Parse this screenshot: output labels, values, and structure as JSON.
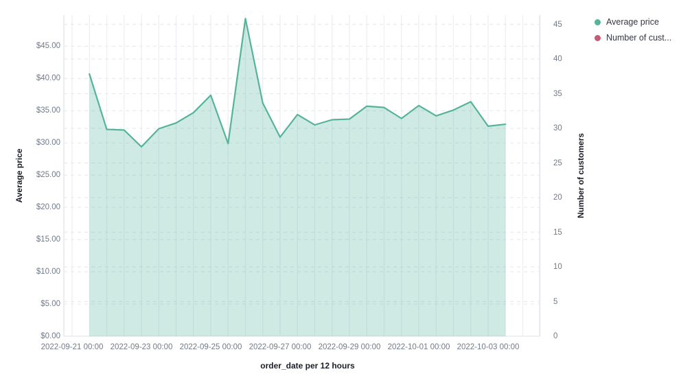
{
  "chart_data": {
    "type": "area",
    "title": "",
    "x_axis": {
      "title": "order_date per 12 hours",
      "tick_labels": [
        "2022-09-21 00:00",
        "2022-09-23 00:00",
        "2022-09-25 00:00",
        "2022-09-27 00:00",
        "2022-09-29 00:00",
        "2022-10-01 00:00",
        "2022-10-03 00:00"
      ],
      "interval": "12 hours",
      "grid": "on"
    },
    "y_axis_left": {
      "title": "Average price",
      "tick_labels": [
        "$0.00",
        "$5.00",
        "$10.00",
        "$15.00",
        "$20.00",
        "$25.00",
        "$30.00",
        "$35.00",
        "$40.00",
        "$45.00"
      ],
      "tick_values": [
        0,
        5,
        10,
        15,
        20,
        25,
        30,
        35,
        40,
        45
      ],
      "range": [
        0,
        50
      ],
      "grid": "dashed"
    },
    "y_axis_right": {
      "title": "Number of customers",
      "tick_labels": [
        "0",
        "5",
        "10",
        "15",
        "20",
        "25",
        "30",
        "35",
        "40",
        "45"
      ],
      "tick_values": [
        0,
        5,
        10,
        15,
        20,
        25,
        30,
        35,
        40,
        45
      ],
      "range": [
        0,
        46.5
      ],
      "grid": "dashed"
    },
    "legend": {
      "position": "top-right",
      "items": [
        {
          "label": "Average price",
          "color": "#54b399"
        },
        {
          "label": "Number of cust...",
          "color": "#c45b79"
        }
      ]
    },
    "series": [
      {
        "name": "Average price",
        "type": "area",
        "axis": "left",
        "color": "#54b399",
        "fill_opacity": 0.28,
        "x": [
          "2022-09-21 12:00",
          "2022-09-22 00:00",
          "2022-09-22 12:00",
          "2022-09-23 00:00",
          "2022-09-23 12:00",
          "2022-09-24 00:00",
          "2022-09-24 12:00",
          "2022-09-25 00:00",
          "2022-09-25 12:00",
          "2022-09-26 00:00",
          "2022-09-26 12:00",
          "2022-09-27 00:00",
          "2022-09-27 12:00",
          "2022-09-28 00:00",
          "2022-09-28 12:00",
          "2022-09-29 00:00",
          "2022-09-29 12:00",
          "2022-09-30 00:00",
          "2022-09-30 12:00",
          "2022-10-01 00:00",
          "2022-10-01 12:00",
          "2022-10-02 00:00",
          "2022-10-02 12:00",
          "2022-10-03 00:00",
          "2022-10-03 12:00"
        ],
        "values": [
          40.7,
          32.1,
          32.0,
          29.4,
          32.2,
          33.1,
          34.7,
          37.4,
          29.9,
          49.3,
          36.2,
          30.9,
          34.4,
          32.8,
          33.6,
          33.7,
          35.7,
          35.5,
          33.8,
          35.8,
          34.2,
          35.1,
          36.4,
          32.6,
          32.9
        ]
      },
      {
        "name": "Number of cust...",
        "type": "line",
        "axis": "right",
        "color": "#c45b79",
        "values": []
      }
    ],
    "colors": {
      "grid_vertical": "#edf0f4",
      "grid_dashed": "#e7ebf0",
      "plot_border": "#e3e7ec",
      "tick_text": "#717a8a",
      "axis_title_text": "#1a1d26",
      "legend_text": "#343741"
    }
  }
}
